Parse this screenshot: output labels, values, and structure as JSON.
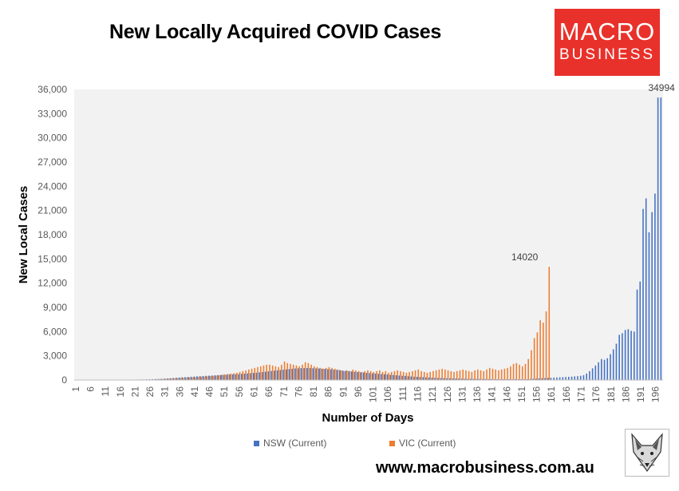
{
  "title": "New Locally Acquired COVID Cases",
  "logo": {
    "line1": "MACRO",
    "line2": "BUSINESS",
    "color": "#e8312a"
  },
  "website": "www.macrobusiness.com.au",
  "fox_logo_icon": "fox-head-icon",
  "chart_data": {
    "type": "bar",
    "xlabel": "Number of Days",
    "ylabel": "New Local Cases",
    "ylim": [
      0,
      36000
    ],
    "yticks": [
      "0",
      "3,000",
      "6,000",
      "9,000",
      "12,000",
      "15,000",
      "18,000",
      "21,000",
      "24,000",
      "27,000",
      "30,000",
      "33,000",
      "36,000"
    ],
    "xtick_labels": [
      "1",
      "6",
      "11",
      "16",
      "21",
      "26",
      "31",
      "36",
      "41",
      "46",
      "51",
      "56",
      "61",
      "66",
      "71",
      "76",
      "81",
      "86",
      "91",
      "96",
      "101",
      "106",
      "111",
      "116",
      "121",
      "126",
      "131",
      "136",
      "141",
      "146",
      "151",
      "156",
      "161",
      "166",
      "171",
      "176",
      "181",
      "186",
      "191",
      "196"
    ],
    "x_start": 1,
    "x_end": 198,
    "legend_position": "bottom",
    "grid": false,
    "series": [
      {
        "name": "NSW (Current)",
        "color": "#4472c4",
        "start_day": 1,
        "values": [
          3,
          5,
          4,
          6,
          8,
          10,
          12,
          15,
          18,
          22,
          25,
          28,
          30,
          32,
          35,
          38,
          40,
          42,
          45,
          48,
          55,
          60,
          68,
          75,
          85,
          95,
          110,
          120,
          135,
          150,
          170,
          190,
          220,
          250,
          280,
          310,
          340,
          370,
          390,
          410,
          430,
          460,
          480,
          500,
          520,
          540,
          560,
          580,
          600,
          620,
          640,
          660,
          680,
          700,
          720,
          740,
          760,
          790,
          820,
          850,
          880,
          910,
          950,
          990,
          1030,
          1080,
          1120,
          1160,
          1200,
          1240,
          1280,
          1320,
          1360,
          1400,
          1430,
          1450,
          1470,
          1480,
          1490,
          1480,
          1460,
          1440,
          1420,
          1400,
          1380,
          1350,
          1320,
          1290,
          1260,
          1220,
          1180,
          1140,
          1100,
          1060,
          1020,
          980,
          950,
          920,
          890,
          860,
          830,
          800,
          770,
          740,
          710,
          680,
          650,
          620,
          590,
          560,
          530,
          500,
          470,
          440,
          410,
          390,
          370,
          350,
          330,
          310,
          290,
          270,
          250,
          240,
          230,
          220,
          210,
          200,
          190,
          180,
          170,
          160,
          150,
          145,
          140,
          135,
          130,
          125,
          120,
          115,
          110,
          105,
          100,
          100,
          100,
          100,
          100,
          100,
          100,
          100,
          100,
          100,
          100,
          120,
          150,
          180,
          200,
          220,
          240,
          260,
          280,
          300,
          320,
          340,
          360,
          380,
          400,
          420,
          450,
          480,
          520,
          600,
          800,
          1100,
          1450,
          1800,
          2200,
          2600,
          2500,
          2700,
          3200,
          3800,
          4500,
          5600,
          5800,
          6200,
          6300,
          6100,
          6000,
          11200,
          12200,
          21200,
          22500,
          18300,
          20800,
          23100,
          34994,
          34994
        ]
      },
      {
        "name": "VIC (Current)",
        "color": "#ed7d31",
        "start_day": 1,
        "values": [
          0,
          0,
          0,
          0,
          0,
          0,
          0,
          0,
          0,
          0,
          0,
          0,
          0,
          0,
          0,
          0,
          0,
          0,
          0,
          0,
          0,
          0,
          0,
          0,
          10,
          40,
          60,
          80,
          100,
          120,
          150,
          170,
          190,
          210,
          230,
          250,
          270,
          290,
          310,
          330,
          360,
          390,
          410,
          430,
          460,
          490,
          520,
          560,
          600,
          650,
          700,
          750,
          800,
          850,
          900,
          1000,
          1100,
          1200,
          1300,
          1400,
          1500,
          1600,
          1700,
          1800,
          1900,
          1900,
          1800,
          1700,
          1600,
          1900,
          2300,
          2100,
          2000,
          1900,
          1800,
          1700,
          1900,
          2200,
          2100,
          1900,
          1700,
          1600,
          1500,
          1400,
          1500,
          1600,
          1500,
          1400,
          1300,
          1200,
          1100,
          1200,
          1100,
          1300,
          1200,
          1100,
          1000,
          1100,
          1200,
          1100,
          1000,
          1100,
          1200,
          1000,
          1100,
          900,
          1000,
          1100,
          1200,
          1100,
          1000,
          900,
          1000,
          1100,
          1200,
          1300,
          1100,
          1000,
          900,
          1000,
          1100,
          1200,
          1300,
          1400,
          1300,
          1200,
          1100,
          1000,
          1100,
          1200,
          1300,
          1200,
          1100,
          1000,
          1200,
          1300,
          1200,
          1100,
          1300,
          1500,
          1400,
          1300,
          1200,
          1300,
          1400,
          1500,
          1700,
          2000,
          2100,
          1900,
          1700,
          2000,
          2600,
          3700,
          5200,
          5900,
          7400,
          7100,
          8500,
          14020
        ]
      }
    ],
    "annotations": [
      {
        "text": "14020",
        "x": 152,
        "y": 14020
      },
      {
        "text": "34994",
        "x": 198,
        "y": 34994
      }
    ]
  }
}
